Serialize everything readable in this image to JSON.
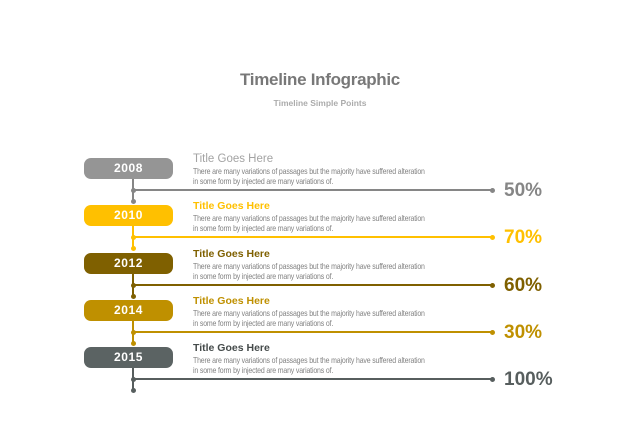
{
  "page": {
    "title": "Timeline Infographic",
    "subtitle": "Timeline Simple Points",
    "background_color": "#FFFFFF",
    "title_color": "#787878",
    "subtitle_color": "#ABABAB"
  },
  "timeline": {
    "entries": [
      {
        "year": "2008",
        "title": "Title Goes Here",
        "body_lines": [
          "There are many variations of passages but the majority have  suffered alteration",
          "in some form by injected  are many variations of."
        ],
        "percent": "50%",
        "box_color": "#959595",
        "accent_color": "#868686",
        "title_color": "#A3A3A3"
      },
      {
        "year": "2010",
        "title": "Title Goes Here",
        "body_lines": [
          "There are many variations of passages but the majority have  suffered alteration",
          "in some form by injected  are many variations of."
        ],
        "percent": "70%",
        "box_color": "#FFC000",
        "accent_color": "#FFC000",
        "title_color": "#FFC000"
      },
      {
        "year": "2012",
        "title": "Title Goes Here",
        "body_lines": [
          "There are many variations of passages but the majority have  suffered alteration",
          "in some form by injected  are many variations of."
        ],
        "percent": "60%",
        "box_color": "#7F6000",
        "accent_color": "#7F6000",
        "title_color": "#7F6000"
      },
      {
        "year": "2014",
        "title": "Title Goes Here",
        "body_lines": [
          "There are many variations of passages but the majority have  suffered alteration",
          "in some form by injected  are many variations of."
        ],
        "percent": "30%",
        "box_color": "#BF9000",
        "accent_color": "#BF9000",
        "title_color": "#BF9000"
      },
      {
        "year": "2015",
        "title": "Title Goes Here",
        "body_lines": [
          "There are many variations of passages but the majority have  suffered alteration",
          "in some form by injected  are many variations of."
        ],
        "percent": "100%",
        "box_color": "#5B6363",
        "accent_color": "#575E5E",
        "title_color": "#454B4B"
      }
    ]
  }
}
